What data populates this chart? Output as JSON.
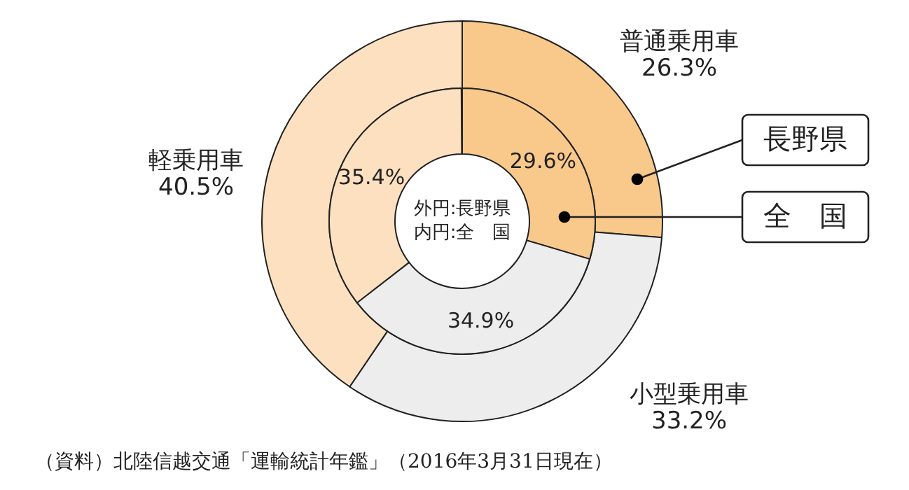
{
  "chart_data": {
    "type": "donut",
    "categories": [
      "普通乗用車",
      "小型乗用車",
      "軽乗用車"
    ],
    "series": [
      {
        "name": "長野県",
        "values": [
          26.3,
          33.2,
          40.5
        ],
        "colors": [
          "#f8c98b",
          "#ededed",
          "#fce0c0"
        ],
        "value_labels": [
          "26.3%",
          "33.2%",
          "40.5%"
        ]
      },
      {
        "name": "全　国",
        "values": [
          29.6,
          34.9,
          35.4
        ],
        "colors": [
          "#f8c98b",
          "#ededed",
          "#fce0c0"
        ],
        "value_labels": [
          "29.6%",
          "34.9%",
          "35.4%"
        ]
      }
    ],
    "legend": "right",
    "annotations": [
      "外円:長野県",
      "内円:全　国",
      "（資料）北陸信越交通「運輸統計年鑑」（2016年3月31日現在）"
    ]
  }
}
